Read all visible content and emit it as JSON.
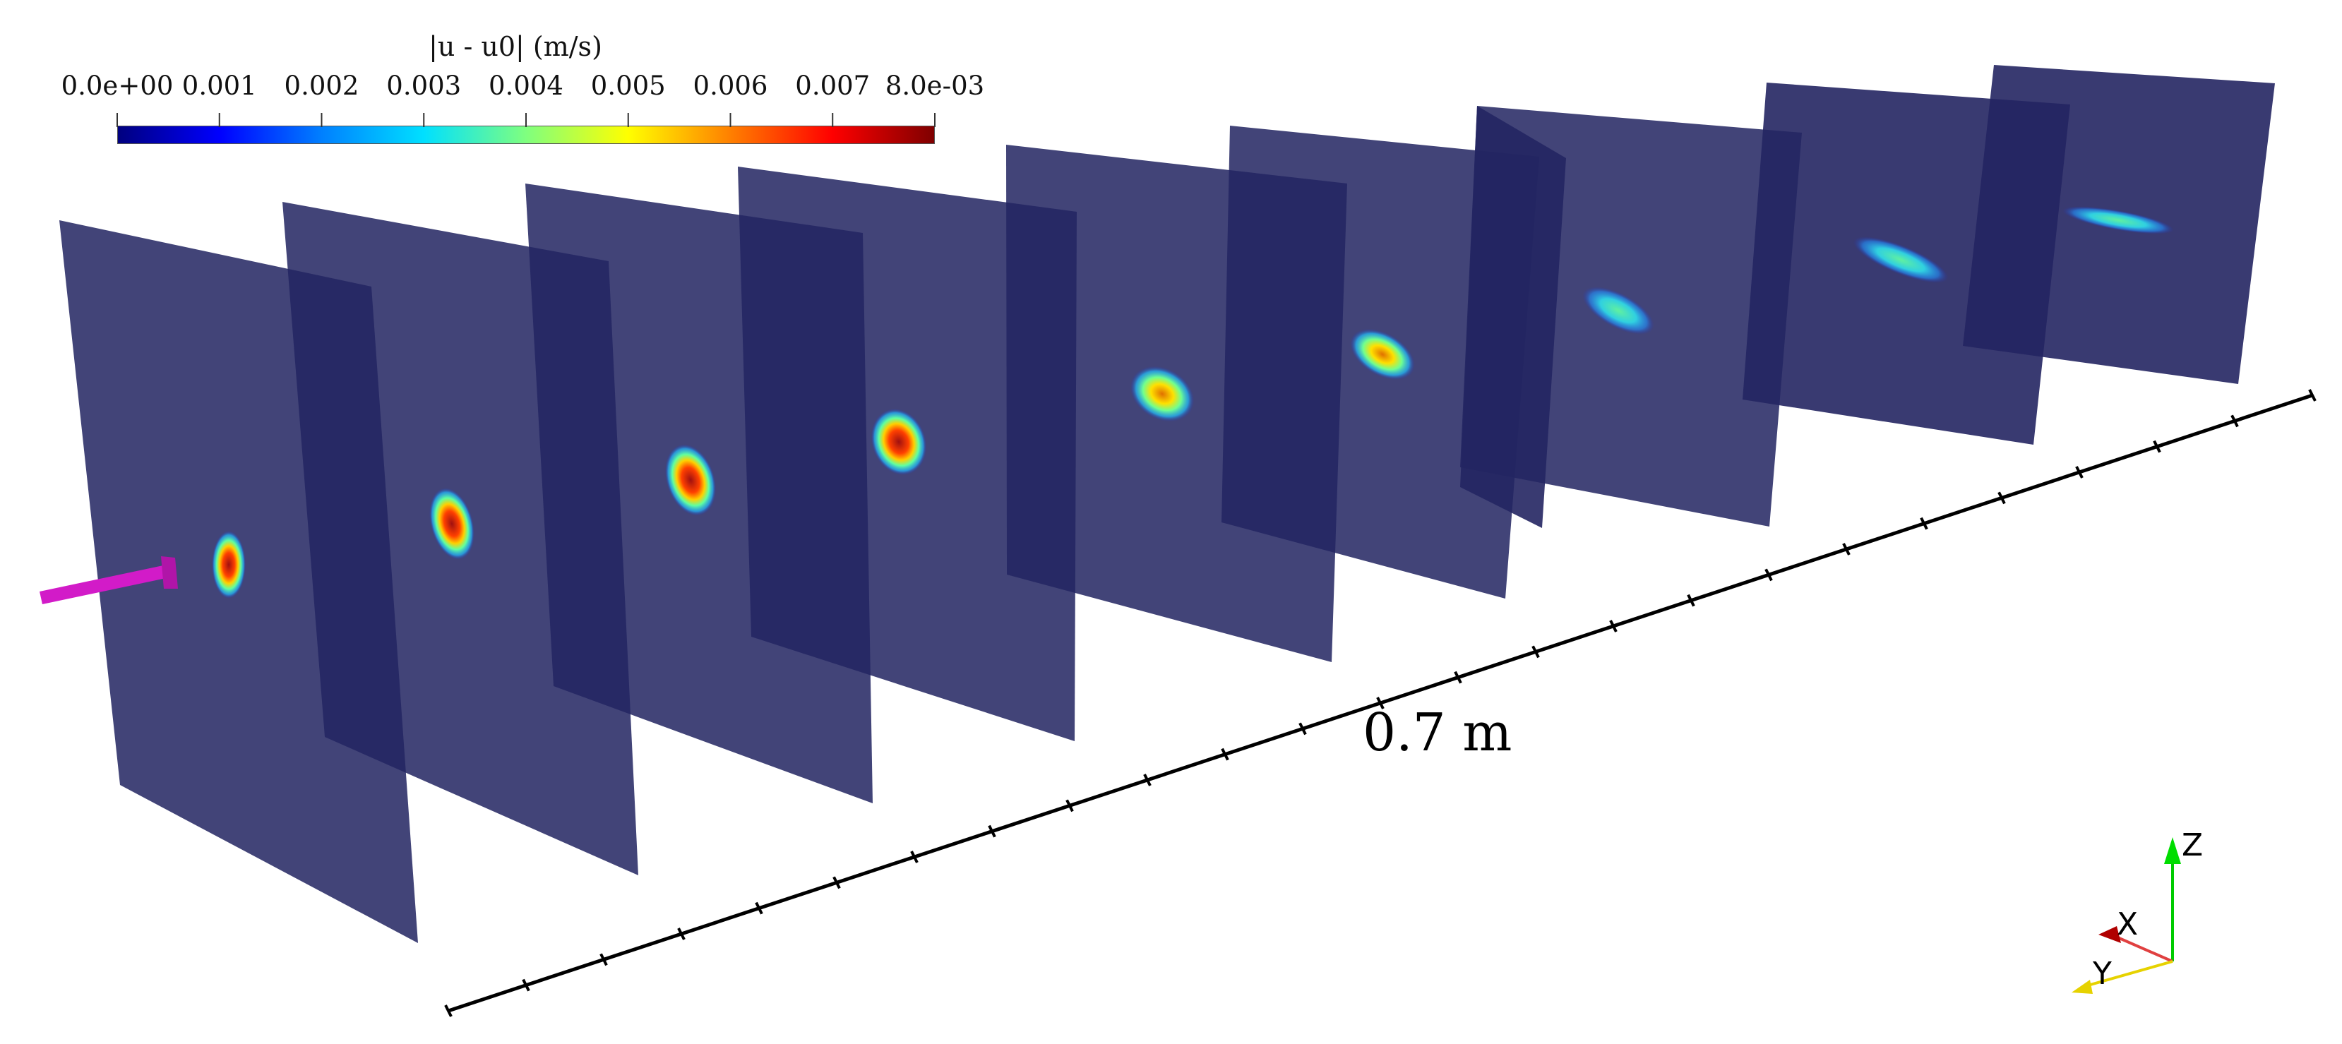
{
  "colorbar": {
    "title": "|u - u0| (m/s)",
    "ticks": [
      "0.0e+00",
      "0.001",
      "0.002",
      "0.003",
      "0.004",
      "0.005",
      "0.006",
      "0.007",
      "8.0e-03"
    ],
    "colormap": "jet",
    "colors": [
      "#00007f",
      "#0000ff",
      "#0080ff",
      "#00e0ff",
      "#7fff7f",
      "#ffff00",
      "#ff8000",
      "#ff0000",
      "#7f0000"
    ]
  },
  "axis": {
    "label": "0.7 m"
  },
  "triad": {
    "x_label": "X",
    "y_label": "Y",
    "z_label": "Z",
    "x_color": "#c00000",
    "y_color": "#e6d200",
    "z_color": "#00cc00"
  },
  "slices": {
    "count": 9,
    "plane_color": "#232562",
    "probe_color": "#d21bc8",
    "peak_magnitude": [
      0.008,
      0.0072,
      0.0068,
      0.0062,
      0.0055,
      0.0048,
      0.0042,
      0.0036,
      0.003
    ]
  }
}
